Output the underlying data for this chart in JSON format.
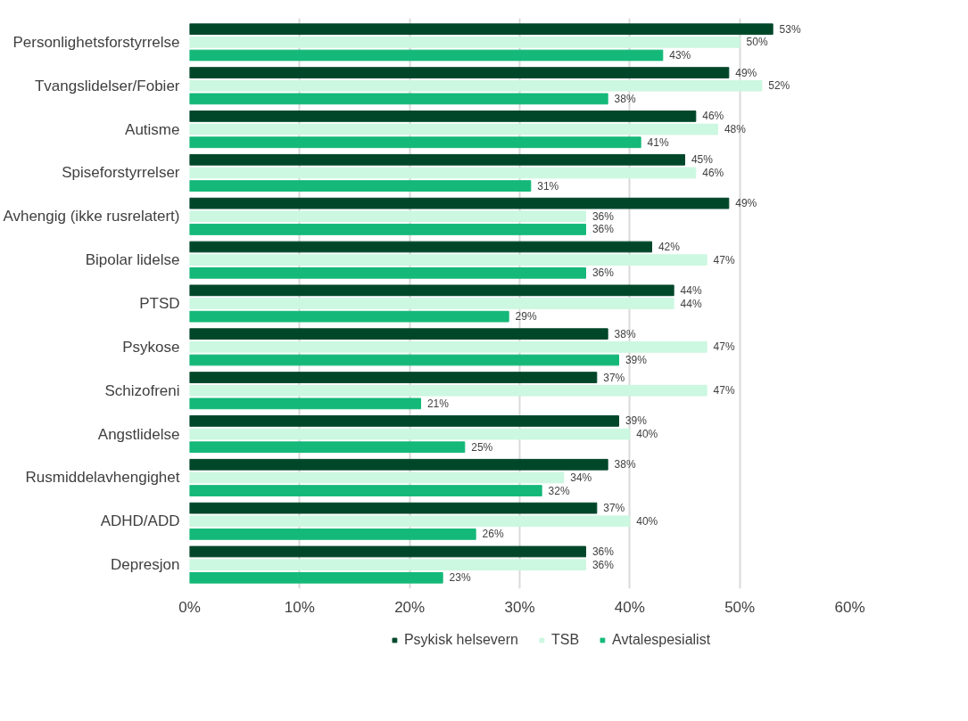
{
  "chart_data": {
    "type": "bar",
    "orientation": "horizontal",
    "categories": [
      "Personlighetsforstyrrelse",
      "Tvangslidelser/Fobier",
      "Autisme",
      "Spiseforstyrrelser",
      "Avhengig (ikke rusrelatert)",
      "Bipolar lidelse",
      "PTSD",
      "Psykose",
      "Schizofreni",
      "Angstlidelse",
      "Rusmiddelavhengighet",
      "ADHD/ADD",
      "Depresjon"
    ],
    "series": [
      {
        "name": "Psykisk helsevern",
        "color": "#00472a",
        "values": [
          53,
          49,
          46,
          45,
          49,
          42,
          44,
          38,
          37,
          39,
          38,
          37,
          36
        ],
        "value_labels": [
          "53%",
          "49%",
          "46%",
          "45%",
          "49%",
          "42%",
          "44%",
          "38%",
          "37%",
          "39%",
          "38%",
          "37%",
          "36%"
        ]
      },
      {
        "name": "TSB",
        "color": "#ccf7e0",
        "values": [
          50,
          52,
          48,
          46,
          36,
          47,
          44,
          47,
          47,
          40,
          34,
          40,
          36
        ],
        "value_labels": [
          "50%",
          "52%",
          "48%",
          "46%",
          "36%",
          "47%",
          "44%",
          "47%",
          "47%",
          "40%",
          "34%",
          "40%",
          "36%"
        ]
      },
      {
        "name": "Avtalespesialist",
        "color": "#14b878",
        "values": [
          43,
          38,
          41,
          31,
          36,
          36,
          29,
          39,
          21,
          25,
          32,
          26,
          23
        ],
        "value_labels": [
          "43%",
          "38%",
          "41%",
          "31%",
          "36%",
          "36%",
          "29%",
          "39%",
          "21%",
          "25%",
          "32%",
          "26%",
          "23%"
        ]
      }
    ],
    "xlim": [
      0,
      60
    ],
    "xticks": [
      {
        "value": 0,
        "label": "0%"
      },
      {
        "value": 10,
        "label": "10%"
      },
      {
        "value": 20,
        "label": "20%"
      },
      {
        "value": 30,
        "label": "30%"
      },
      {
        "value": 40,
        "label": "40%"
      },
      {
        "value": 50,
        "label": "50%"
      },
      {
        "value": 60,
        "label": "60%"
      }
    ],
    "grid": "x",
    "legend": "bottom"
  }
}
